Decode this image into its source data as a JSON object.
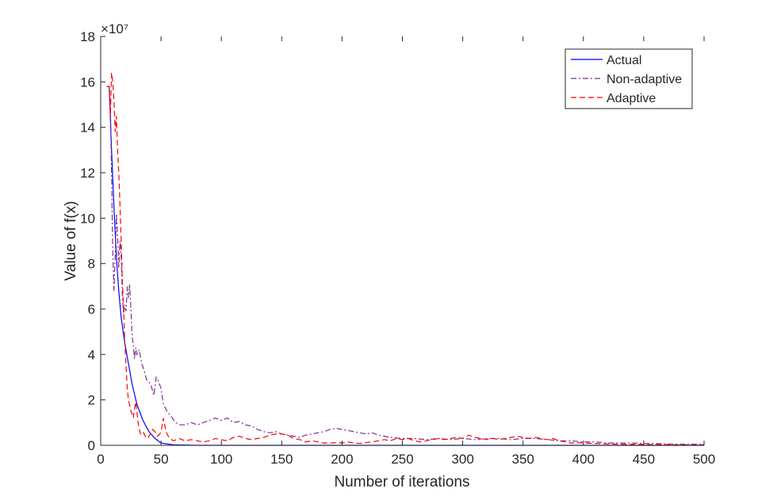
{
  "chart_data": {
    "type": "line",
    "xlabel": "Number of iterations",
    "ylabel": "Value of f(x)",
    "exponent_label": "×10⁷",
    "xlim": [
      0,
      500
    ],
    "ylim": [
      0,
      18
    ],
    "x_ticks": [
      0,
      50,
      100,
      150,
      200,
      250,
      300,
      350,
      400,
      450,
      500
    ],
    "y_ticks": [
      0,
      2,
      4,
      6,
      8,
      10,
      12,
      14,
      16,
      18
    ],
    "grid": false,
    "legend_position": "top-right",
    "series": [
      {
        "name": "Actual",
        "color": "#0000ff",
        "dash": "solid",
        "points": [
          [
            5,
            15.8
          ],
          [
            7,
            15.8
          ],
          [
            9,
            13.0
          ],
          [
            11,
            10.5
          ],
          [
            13,
            8.3
          ],
          [
            15,
            6.8
          ],
          [
            17,
            5.6
          ],
          [
            20,
            4.5
          ],
          [
            23,
            3.6
          ],
          [
            26,
            2.7
          ],
          [
            30,
            1.8
          ],
          [
            35,
            1.1
          ],
          [
            40,
            0.6
          ],
          [
            45,
            0.3
          ],
          [
            50,
            0.1
          ],
          [
            60,
            0.02
          ],
          [
            80,
            0
          ],
          [
            150,
            0
          ],
          [
            250,
            0
          ],
          [
            350,
            0
          ],
          [
            450,
            0
          ],
          [
            500,
            0
          ]
        ]
      },
      {
        "name": "Non-adaptive",
        "color": "#7e2f8e",
        "dash": "dashdot",
        "points": [
          [
            5,
            15.8
          ],
          [
            7,
            15.8
          ],
          [
            8,
            15.0
          ],
          [
            9,
            12.0
          ],
          [
            10,
            8.5
          ],
          [
            11,
            6.8
          ],
          [
            12,
            8.4
          ],
          [
            13,
            10.2
          ],
          [
            14,
            9.2
          ],
          [
            15,
            7.8
          ],
          [
            16,
            9.0
          ],
          [
            17,
            8.2
          ],
          [
            18,
            6.6
          ],
          [
            19,
            5.8
          ],
          [
            20,
            6.2
          ],
          [
            21,
            5.9
          ],
          [
            22,
            7.0
          ],
          [
            23,
            6.5
          ],
          [
            24,
            7.1
          ],
          [
            25,
            6.0
          ],
          [
            26,
            4.8
          ],
          [
            27,
            4.4
          ],
          [
            28,
            3.8
          ],
          [
            29,
            4.3
          ],
          [
            30,
            4.0
          ],
          [
            32,
            4.2
          ],
          [
            34,
            3.6
          ],
          [
            36,
            3.3
          ],
          [
            38,
            2.9
          ],
          [
            40,
            2.8
          ],
          [
            42,
            2.6
          ],
          [
            44,
            2.2
          ],
          [
            46,
            3.0
          ],
          [
            48,
            2.8
          ],
          [
            50,
            2.5
          ],
          [
            52,
            1.8
          ],
          [
            55,
            1.5
          ],
          [
            58,
            1.3
          ],
          [
            62,
            1.0
          ],
          [
            66,
            0.9
          ],
          [
            70,
            0.9
          ],
          [
            75,
            1.0
          ],
          [
            80,
            0.9
          ],
          [
            85,
            1.0
          ],
          [
            90,
            1.1
          ],
          [
            95,
            1.2
          ],
          [
            100,
            1.1
          ],
          [
            105,
            1.2
          ],
          [
            110,
            1.0
          ],
          [
            115,
            1.05
          ],
          [
            120,
            0.9
          ],
          [
            125,
            0.85
          ],
          [
            130,
            0.7
          ],
          [
            135,
            0.6
          ],
          [
            140,
            0.55
          ],
          [
            145,
            0.6
          ],
          [
            150,
            0.5
          ],
          [
            155,
            0.45
          ],
          [
            160,
            0.4
          ],
          [
            165,
            0.35
          ],
          [
            170,
            0.45
          ],
          [
            175,
            0.5
          ],
          [
            180,
            0.55
          ],
          [
            185,
            0.6
          ],
          [
            190,
            0.7
          ],
          [
            195,
            0.75
          ],
          [
            200,
            0.7
          ],
          [
            205,
            0.65
          ],
          [
            210,
            0.6
          ],
          [
            215,
            0.55
          ],
          [
            220,
            0.5
          ],
          [
            225,
            0.55
          ],
          [
            230,
            0.45
          ],
          [
            235,
            0.4
          ],
          [
            240,
            0.35
          ],
          [
            250,
            0.3
          ],
          [
            260,
            0.3
          ],
          [
            270,
            0.25
          ],
          [
            280,
            0.3
          ],
          [
            290,
            0.25
          ],
          [
            300,
            0.3
          ],
          [
            310,
            0.25
          ],
          [
            320,
            0.3
          ],
          [
            330,
            0.3
          ],
          [
            340,
            0.25
          ],
          [
            350,
            0.3
          ],
          [
            360,
            0.3
          ],
          [
            370,
            0.25
          ],
          [
            380,
            0.2
          ],
          [
            390,
            0.2
          ],
          [
            400,
            0.15
          ],
          [
            410,
            0.15
          ],
          [
            420,
            0.1
          ],
          [
            430,
            0.1
          ],
          [
            440,
            0.1
          ],
          [
            450,
            0.08
          ],
          [
            460,
            0.08
          ],
          [
            470,
            0.06
          ],
          [
            480,
            0.05
          ],
          [
            490,
            0.05
          ],
          [
            500,
            0.05
          ]
        ]
      },
      {
        "name": "Adaptive",
        "color": "#ff0000",
        "dash": "dashed",
        "points": [
          [
            5,
            15.8
          ],
          [
            7,
            15.8
          ],
          [
            8,
            14.5
          ],
          [
            9,
            16.4
          ],
          [
            10,
            16.0
          ],
          [
            11,
            15.2
          ],
          [
            12,
            13.8
          ],
          [
            13,
            14.5
          ],
          [
            14,
            13.0
          ],
          [
            15,
            12.0
          ],
          [
            16,
            10.5
          ],
          [
            17,
            9.0
          ],
          [
            18,
            7.2
          ],
          [
            19,
            6.0
          ],
          [
            20,
            4.5
          ],
          [
            21,
            3.5
          ],
          [
            22,
            2.5
          ],
          [
            23,
            2.0
          ],
          [
            24,
            1.8
          ],
          [
            25,
            1.5
          ],
          [
            26,
            1.4
          ],
          [
            27,
            1.2
          ],
          [
            28,
            1.6
          ],
          [
            29,
            1.9
          ],
          [
            30,
            1.5
          ],
          [
            31,
            1.0
          ],
          [
            32,
            0.7
          ],
          [
            33,
            0.5
          ],
          [
            35,
            0.6
          ],
          [
            37,
            0.4
          ],
          [
            39,
            0.3
          ],
          [
            41,
            0.5
          ],
          [
            43,
            0.7
          ],
          [
            45,
            0.6
          ],
          [
            47,
            0.4
          ],
          [
            49,
            0.5
          ],
          [
            50,
            0.6
          ],
          [
            51,
            0.9
          ],
          [
            52,
            1.2
          ],
          [
            53,
            0.9
          ],
          [
            54,
            0.6
          ],
          [
            56,
            0.4
          ],
          [
            58,
            0.3
          ],
          [
            60,
            0.2
          ],
          [
            65,
            0.3
          ],
          [
            70,
            0.2
          ],
          [
            75,
            0.25
          ],
          [
            80,
            0.2
          ],
          [
            85,
            0.15
          ],
          [
            90,
            0.2
          ],
          [
            95,
            0.3
          ],
          [
            100,
            0.25
          ],
          [
            105,
            0.2
          ],
          [
            110,
            0.35
          ],
          [
            115,
            0.4
          ],
          [
            120,
            0.3
          ],
          [
            125,
            0.25
          ],
          [
            130,
            0.3
          ],
          [
            135,
            0.35
          ],
          [
            140,
            0.45
          ],
          [
            145,
            0.5
          ],
          [
            150,
            0.5
          ],
          [
            155,
            0.45
          ],
          [
            160,
            0.3
          ],
          [
            165,
            0.25
          ],
          [
            170,
            0.15
          ],
          [
            175,
            0.2
          ],
          [
            180,
            0.15
          ],
          [
            185,
            0.1
          ],
          [
            190,
            0.1
          ],
          [
            195,
            0.12
          ],
          [
            200,
            0.1
          ],
          [
            205,
            0.15
          ],
          [
            210,
            0.1
          ],
          [
            215,
            0.08
          ],
          [
            220,
            0.12
          ],
          [
            225,
            0.15
          ],
          [
            230,
            0.2
          ],
          [
            235,
            0.25
          ],
          [
            240,
            0.2
          ],
          [
            245,
            0.3
          ],
          [
            250,
            0.25
          ],
          [
            255,
            0.3
          ],
          [
            260,
            0.2
          ],
          [
            265,
            0.15
          ],
          [
            270,
            0.2
          ],
          [
            275,
            0.25
          ],
          [
            280,
            0.3
          ],
          [
            285,
            0.25
          ],
          [
            290,
            0.3
          ],
          [
            295,
            0.35
          ],
          [
            300,
            0.3
          ],
          [
            305,
            0.45
          ],
          [
            310,
            0.35
          ],
          [
            315,
            0.3
          ],
          [
            320,
            0.25
          ],
          [
            325,
            0.3
          ],
          [
            330,
            0.25
          ],
          [
            335,
            0.3
          ],
          [
            340,
            0.35
          ],
          [
            345,
            0.4
          ],
          [
            350,
            0.35
          ],
          [
            355,
            0.3
          ],
          [
            360,
            0.35
          ],
          [
            365,
            0.3
          ],
          [
            370,
            0.25
          ],
          [
            375,
            0.3
          ],
          [
            380,
            0.2
          ],
          [
            385,
            0.15
          ],
          [
            390,
            0.1
          ],
          [
            395,
            0.12
          ],
          [
            400,
            0.1
          ],
          [
            410,
            0.08
          ],
          [
            420,
            0.06
          ],
          [
            430,
            0.05
          ],
          [
            440,
            0.04
          ],
          [
            450,
            0.04
          ],
          [
            460,
            0.03
          ],
          [
            470,
            0.03
          ],
          [
            480,
            0.02
          ],
          [
            490,
            0.02
          ],
          [
            500,
            0.02
          ]
        ]
      }
    ]
  }
}
